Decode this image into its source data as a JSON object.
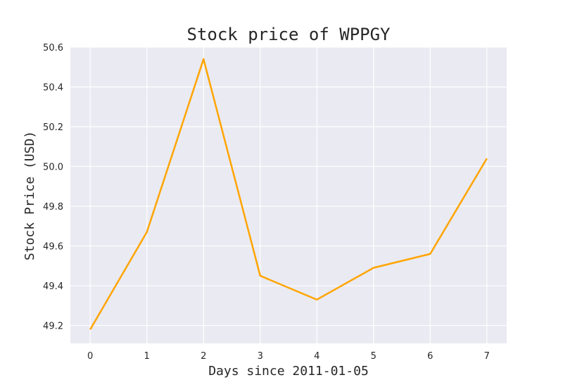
{
  "chart_data": {
    "type": "line",
    "title": "Stock price of WPPGY",
    "xlabel": "Days since 2011-01-05",
    "ylabel": "Stock Price (USD)",
    "x": [
      0,
      1,
      2,
      3,
      4,
      5,
      6,
      7
    ],
    "series": [
      {
        "values": [
          49.18,
          49.67,
          50.54,
          49.45,
          49.33,
          49.49,
          49.56,
          50.04
        ],
        "color": "#ffa500"
      }
    ],
    "x_ticks": [
      "0",
      "1",
      "2",
      "3",
      "4",
      "5",
      "6",
      "7"
    ],
    "y_ticks": [
      "49.2",
      "49.4",
      "49.6",
      "49.8",
      "50.0",
      "50.2",
      "50.4",
      "50.6"
    ],
    "xlim": [
      -0.35,
      7.35
    ],
    "ylim": [
      49.11,
      50.6
    ],
    "grid": true,
    "background": "#eaeaf2",
    "grid_color": "#ffffff"
  }
}
